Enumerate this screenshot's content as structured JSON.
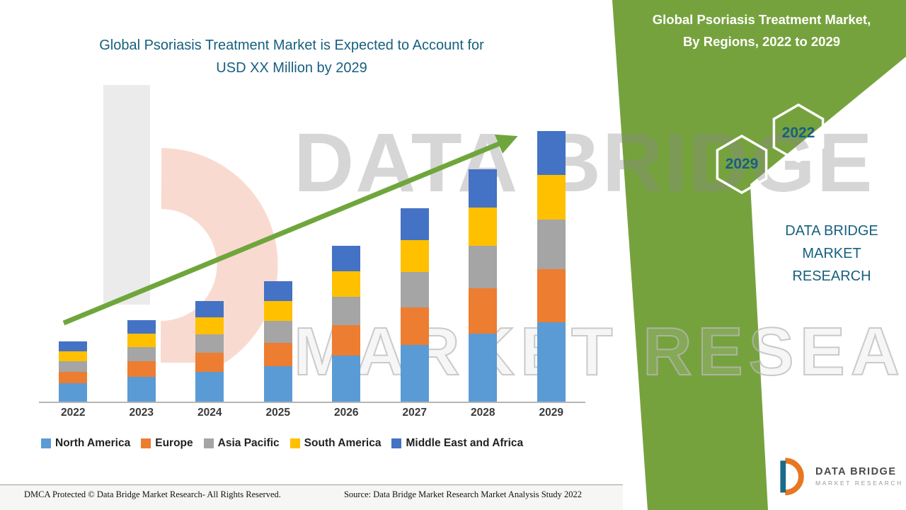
{
  "titles": {
    "main_line1": "Global Psoriasis Treatment Market is Expected to Account for",
    "main_line2": "USD XX Million by 2029",
    "band_line1": "Global Psoriasis Treatment Market,",
    "band_line2": "By Regions, 2022 to 2029"
  },
  "badges": {
    "hex_upper_right": "2022",
    "hex_lower_left": "2029"
  },
  "brand": {
    "name_line1": "DATA BRIDGE MARKET",
    "name_line2": "RESEARCH",
    "logo_text": "DATA BRIDGE",
    "logo_sub": "MARKET RESEARCH"
  },
  "watermark": {
    "line1": "DATA BRIDGE",
    "line2": "MARKET RESEARCH"
  },
  "footer": {
    "left": "DMCA Protected © Data Bridge Market Research- All Rights Reserved.",
    "source": "Source: Data Bridge Market Research Market Analysis Study 2022"
  },
  "colors": {
    "band_green": "#76A23E",
    "arrow_green": "#6FA63C",
    "title_teal": "#17607F",
    "brand_orange": "#E87722",
    "brand_teal": "#1A6B8A"
  },
  "chart_data": {
    "type": "bar",
    "stacked": true,
    "title": "Global Psoriasis Treatment Market is Expected to Account for USD XX Million by 2029",
    "subtitle": "Global Psoriasis Treatment Market, By Regions, 2022 to 2029",
    "categories": [
      "2022",
      "2023",
      "2024",
      "2025",
      "2026",
      "2027",
      "2028",
      "2029"
    ],
    "value_scale": "relative index — chart shows no numeric axis (values masked as USD XX Million)",
    "ylim": [
      0,
      40
    ],
    "grid": false,
    "legend_position": "bottom",
    "trend_arrow": true,
    "series": [
      {
        "name": "North America",
        "color": "#5B9BD5",
        "values": [
          2.6,
          3.5,
          4.2,
          5.0,
          6.5,
          8.0,
          9.6,
          11.2
        ]
      },
      {
        "name": "Europe",
        "color": "#ED7D31",
        "values": [
          1.6,
          2.2,
          2.7,
          3.3,
          4.3,
          5.3,
          6.4,
          7.5
        ]
      },
      {
        "name": "Asia Pacific",
        "color": "#A5A5A5",
        "values": [
          1.5,
          2.0,
          2.6,
          3.1,
          4.0,
          5.0,
          6.0,
          7.0
        ]
      },
      {
        "name": "South America",
        "color": "#FFC000",
        "values": [
          1.4,
          1.9,
          2.4,
          2.8,
          3.6,
          4.5,
          5.4,
          6.3
        ]
      },
      {
        "name": "Middle East and Africa",
        "color": "#4472C4",
        "values": [
          1.4,
          1.9,
          2.3,
          2.8,
          3.6,
          4.5,
          5.4,
          6.2
        ]
      }
    ]
  }
}
